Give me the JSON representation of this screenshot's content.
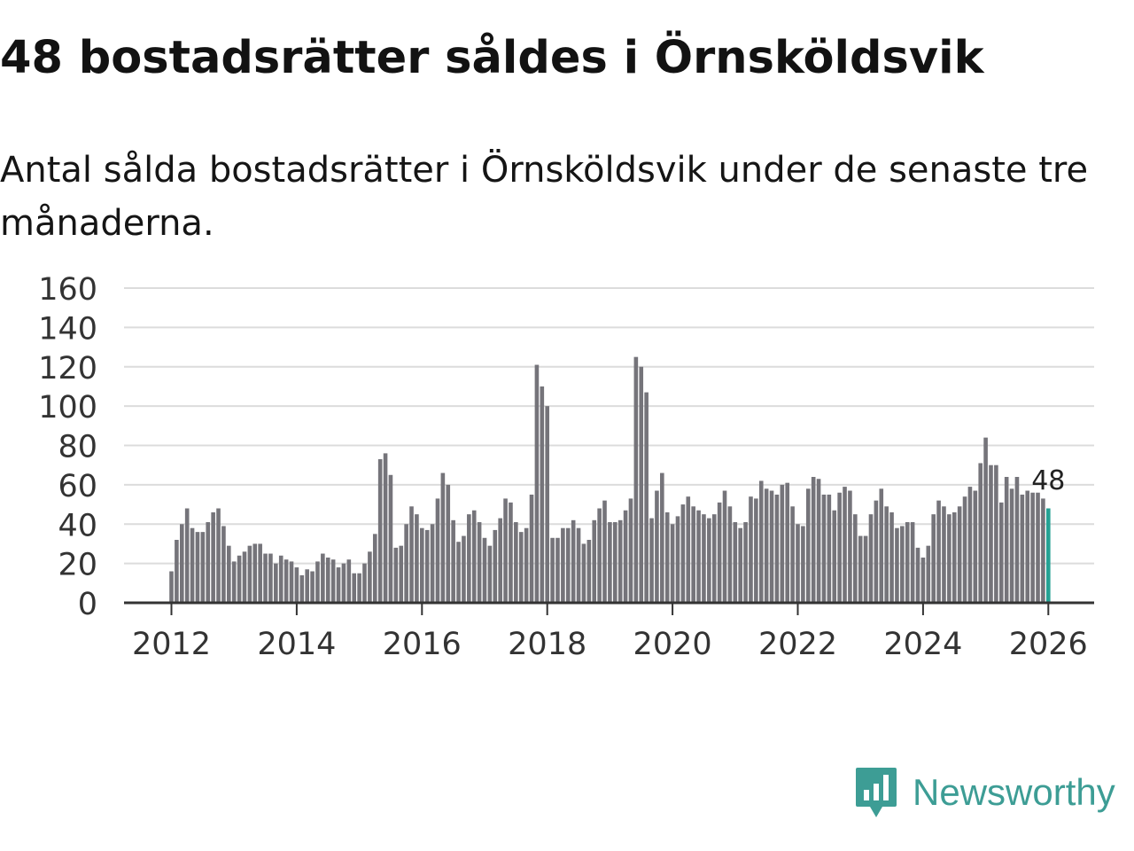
{
  "header": {
    "title": "48 bostadsrätter såldes i Örnsköldsvik",
    "subtitle": "Antal sålda bostadsrätter i Örnsköldsvik under de senaste tre månaderna."
  },
  "branding": {
    "name": "Newsworthy",
    "color": "#3d9d95"
  },
  "chart_data": {
    "type": "bar",
    "title": "48 bostadsrätter såldes i Örnsköldsvik",
    "subtitle": "Antal sålda bostadsrätter i Örnsköldsvik under de senaste tre månaderna.",
    "xlabel": "",
    "ylabel": "",
    "ylim": [
      0,
      160
    ],
    "yticks": [
      0,
      20,
      40,
      60,
      80,
      100,
      120,
      140,
      160
    ],
    "xticks": [
      2012,
      2014,
      2016,
      2018,
      2020,
      2022,
      2024,
      2026
    ],
    "x_start": 2012.0,
    "x_step_months": 1,
    "grid": true,
    "bar_color": "#75747a",
    "highlight_color": "#25a294",
    "highlight_label": "48",
    "values": [
      16,
      32,
      40,
      48,
      38,
      36,
      36,
      41,
      46,
      48,
      39,
      29,
      21,
      24,
      26,
      29,
      30,
      30,
      25,
      25,
      20,
      24,
      22,
      21,
      18,
      14,
      17,
      16,
      21,
      25,
      23,
      22,
      18,
      20,
      22,
      15,
      15,
      20,
      26,
      35,
      73,
      76,
      65,
      28,
      29,
      40,
      49,
      45,
      38,
      37,
      40,
      53,
      66,
      60,
      42,
      31,
      34,
      45,
      47,
      41,
      33,
      29,
      37,
      43,
      53,
      51,
      41,
      36,
      38,
      55,
      121,
      110,
      100,
      33,
      33,
      38,
      38,
      42,
      38,
      30,
      32,
      42,
      48,
      52,
      41,
      41,
      42,
      47,
      53,
      125,
      120,
      107,
      43,
      57,
      66,
      46,
      40,
      44,
      50,
      54,
      49,
      47,
      45,
      43,
      45,
      51,
      57,
      49,
      41,
      38,
      41,
      54,
      53,
      62,
      58,
      57,
      55,
      60,
      61,
      49,
      40,
      39,
      58,
      64,
      63,
      55,
      55,
      47,
      56,
      59,
      57,
      45,
      34,
      34,
      45,
      52,
      58,
      49,
      46,
      38,
      39,
      41,
      41,
      28,
      23,
      29,
      45,
      52,
      49,
      45,
      46,
      49,
      54,
      59,
      57,
      71,
      84,
      70,
      70,
      51,
      64,
      58,
      64,
      55,
      57,
      56,
      56,
      53,
      48
    ]
  }
}
